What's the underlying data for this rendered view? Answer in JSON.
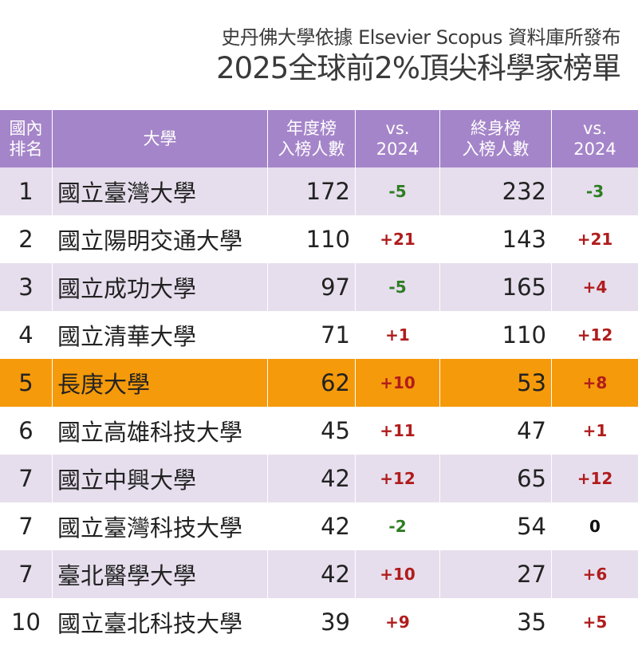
{
  "header": {
    "subtitle": "史丹佛大學依據 Elsevier Scopus 資料庫所發布",
    "title": "2025全球前2%頂尖科學家榜單"
  },
  "colors": {
    "header_bg": "#a585c9",
    "row_alt": "#e6deed",
    "row_plain": "#ffffff",
    "highlight": "#f59a0a",
    "negative": "#2e7d22",
    "positive": "#b01c1c"
  },
  "columns": {
    "rank": "國內\n排名",
    "university": "大學",
    "annual": "年度榜\n入榜人數",
    "annual_vs": "vs.\n2024",
    "lifetime": "終身榜\n入榜人數",
    "lifetime_vs": "vs.\n2024"
  },
  "rows": [
    {
      "rank": "1",
      "university": "國立臺灣大學",
      "annual": "172",
      "annual_vs": "-5",
      "lifetime": "232",
      "lifetime_vs": "-3"
    },
    {
      "rank": "2",
      "university": "國立陽明交通大學",
      "annual": "110",
      "annual_vs": "+21",
      "lifetime": "143",
      "lifetime_vs": "+21"
    },
    {
      "rank": "3",
      "university": "國立成功大學",
      "annual": "97",
      "annual_vs": "-5",
      "lifetime": "165",
      "lifetime_vs": "+4"
    },
    {
      "rank": "4",
      "university": "國立清華大學",
      "annual": "71",
      "annual_vs": "+1",
      "lifetime": "110",
      "lifetime_vs": "+12"
    },
    {
      "rank": "5",
      "university": "長庚大學",
      "annual": "62",
      "annual_vs": "+10",
      "lifetime": "53",
      "lifetime_vs": "+8",
      "highlighted": true
    },
    {
      "rank": "6",
      "university": "國立高雄科技大學",
      "annual": "45",
      "annual_vs": "+11",
      "lifetime": "47",
      "lifetime_vs": "+1"
    },
    {
      "rank": "7",
      "university": "國立中興大學",
      "annual": "42",
      "annual_vs": "+12",
      "lifetime": "65",
      "lifetime_vs": "+12"
    },
    {
      "rank": "7",
      "university": "國立臺灣科技大學",
      "annual": "42",
      "annual_vs": "-2",
      "lifetime": "54",
      "lifetime_vs": "0"
    },
    {
      "rank": "7",
      "university": "臺北醫學大學",
      "annual": "42",
      "annual_vs": "+10",
      "lifetime": "27",
      "lifetime_vs": "+6"
    },
    {
      "rank": "10",
      "university": "國立臺北科技大學",
      "annual": "39",
      "annual_vs": "+9",
      "lifetime": "35",
      "lifetime_vs": "+5"
    }
  ]
}
